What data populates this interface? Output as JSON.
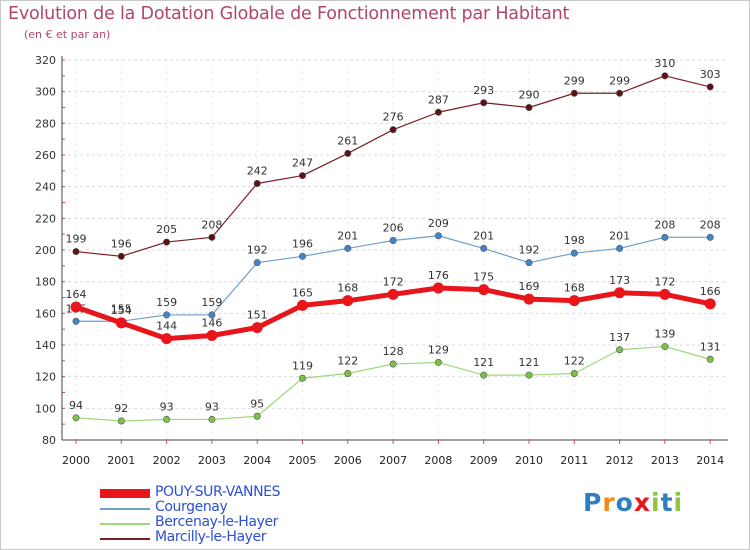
{
  "chart_data": {
    "type": "line",
    "title": "Evolution de la Dotation Globale de Fonctionnement par Habitant",
    "subtitle": "(en € et par an)",
    "xlabel": "",
    "ylabel": "",
    "ylim": [
      80,
      320
    ],
    "yticks": [
      80,
      100,
      120,
      140,
      160,
      180,
      200,
      220,
      240,
      260,
      280,
      300,
      320
    ],
    "grid": true,
    "x": [
      "2000",
      "2001",
      "2002",
      "2003",
      "2004",
      "2005",
      "2006",
      "2007",
      "2008",
      "2009",
      "2010",
      "2011",
      "2012",
      "2013",
      "2014"
    ],
    "series": [
      {
        "name": "Marcilly-le-Hayer",
        "color": "#7a1e24",
        "marker": "#5e1016",
        "width": 1.2,
        "values": [
          199,
          196,
          205,
          208,
          242,
          247,
          261,
          276,
          287,
          293,
          290,
          299,
          299,
          310,
          303
        ]
      },
      {
        "name": "Courgenay",
        "color": "#6c9fce",
        "marker": "#3f86c9",
        "width": 1.2,
        "values": [
          155,
          155,
          159,
          159,
          192,
          196,
          201,
          206,
          209,
          201,
          192,
          198,
          201,
          208,
          208
        ]
      },
      {
        "name": "Bercenay-le-Hayer",
        "color": "#9ed778",
        "marker": "#79c543",
        "width": 1.2,
        "values": [
          94,
          92,
          93,
          93,
          95,
          119,
          122,
          128,
          129,
          121,
          121,
          122,
          137,
          139,
          131
        ]
      },
      {
        "name": "POUY-SUR-VANNES",
        "color": "#e8151b",
        "marker": "#e8151b",
        "width": 5,
        "values": [
          164,
          154,
          144,
          146,
          151,
          165,
          168,
          172,
          176,
          175,
          169,
          168,
          173,
          172,
          166
        ]
      }
    ],
    "legend": [
      "POUY-SUR-VANNES",
      "Courgenay",
      "Bercenay-le-Hayer",
      "Marcilly-le-Hayer"
    ],
    "legend_position": "bottom-left"
  },
  "logo": {
    "text": "Proxiti",
    "letters": [
      "P",
      "r",
      "o",
      "x",
      "i",
      "t",
      "i"
    ],
    "colors": [
      "#2d7fc1",
      "#f08a1c",
      "#2d7fc1",
      "#e8151b",
      "#8cc63f",
      "#2d7fc1",
      "#8cc63f"
    ]
  }
}
